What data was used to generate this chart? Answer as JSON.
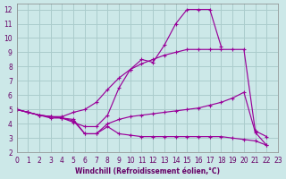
{
  "xlabel": "Windchill (Refroidissement éolien,°C)",
  "background_color": "#cce8e8",
  "grid_color": "#aacccc",
  "line_color": "#990099",
  "xmin": 0,
  "xmax": 23,
  "ymin": 2,
  "ymax": 12.4,
  "yticks": [
    2,
    3,
    4,
    5,
    6,
    7,
    8,
    9,
    10,
    11,
    12
  ],
  "line1_x": [
    0,
    1,
    2,
    3,
    4,
    5,
    6,
    7,
    8,
    9,
    10,
    11,
    12,
    13,
    14,
    15,
    16,
    17,
    18
  ],
  "line1_y": [
    5.0,
    4.8,
    4.6,
    4.5,
    4.4,
    4.1,
    3.8,
    3.8,
    4.6,
    6.5,
    7.8,
    8.5,
    8.3,
    9.5,
    11.0,
    12.0,
    12.0,
    12.0,
    9.4
  ],
  "line2_x": [
    0,
    1,
    2,
    3,
    4,
    5,
    6,
    7,
    8,
    9,
    10,
    11,
    12,
    13,
    14,
    15,
    16,
    17,
    18,
    19,
    20,
    21,
    22
  ],
  "line2_y": [
    5.0,
    4.8,
    4.6,
    4.5,
    4.5,
    4.8,
    5.0,
    5.5,
    6.4,
    7.2,
    7.8,
    8.2,
    8.5,
    8.8,
    9.0,
    9.2,
    9.2,
    9.2,
    9.2,
    9.2,
    9.2,
    3.5,
    3.1
  ],
  "line3_x": [
    0,
    1,
    2,
    3,
    4,
    5,
    6,
    7,
    8,
    9,
    10,
    11,
    12,
    13,
    14,
    15,
    16,
    17,
    18,
    19,
    20,
    21,
    22
  ],
  "line3_y": [
    5.0,
    4.8,
    4.6,
    4.5,
    4.4,
    4.3,
    3.3,
    3.3,
    4.0,
    4.3,
    4.5,
    4.6,
    4.7,
    4.8,
    4.9,
    5.0,
    5.1,
    5.3,
    5.5,
    5.8,
    6.2,
    3.4,
    2.5
  ],
  "line4_x": [
    0,
    1,
    2,
    3,
    4,
    5,
    6,
    7,
    8,
    9,
    10,
    11,
    12,
    13,
    14,
    15,
    16,
    17,
    18,
    19,
    20,
    21,
    22
  ],
  "line4_y": [
    5.0,
    4.8,
    4.6,
    4.4,
    4.4,
    4.2,
    3.3,
    3.3,
    3.8,
    3.3,
    3.2,
    3.1,
    3.1,
    3.1,
    3.1,
    3.1,
    3.1,
    3.1,
    3.1,
    3.0,
    2.9,
    2.8,
    2.5
  ]
}
